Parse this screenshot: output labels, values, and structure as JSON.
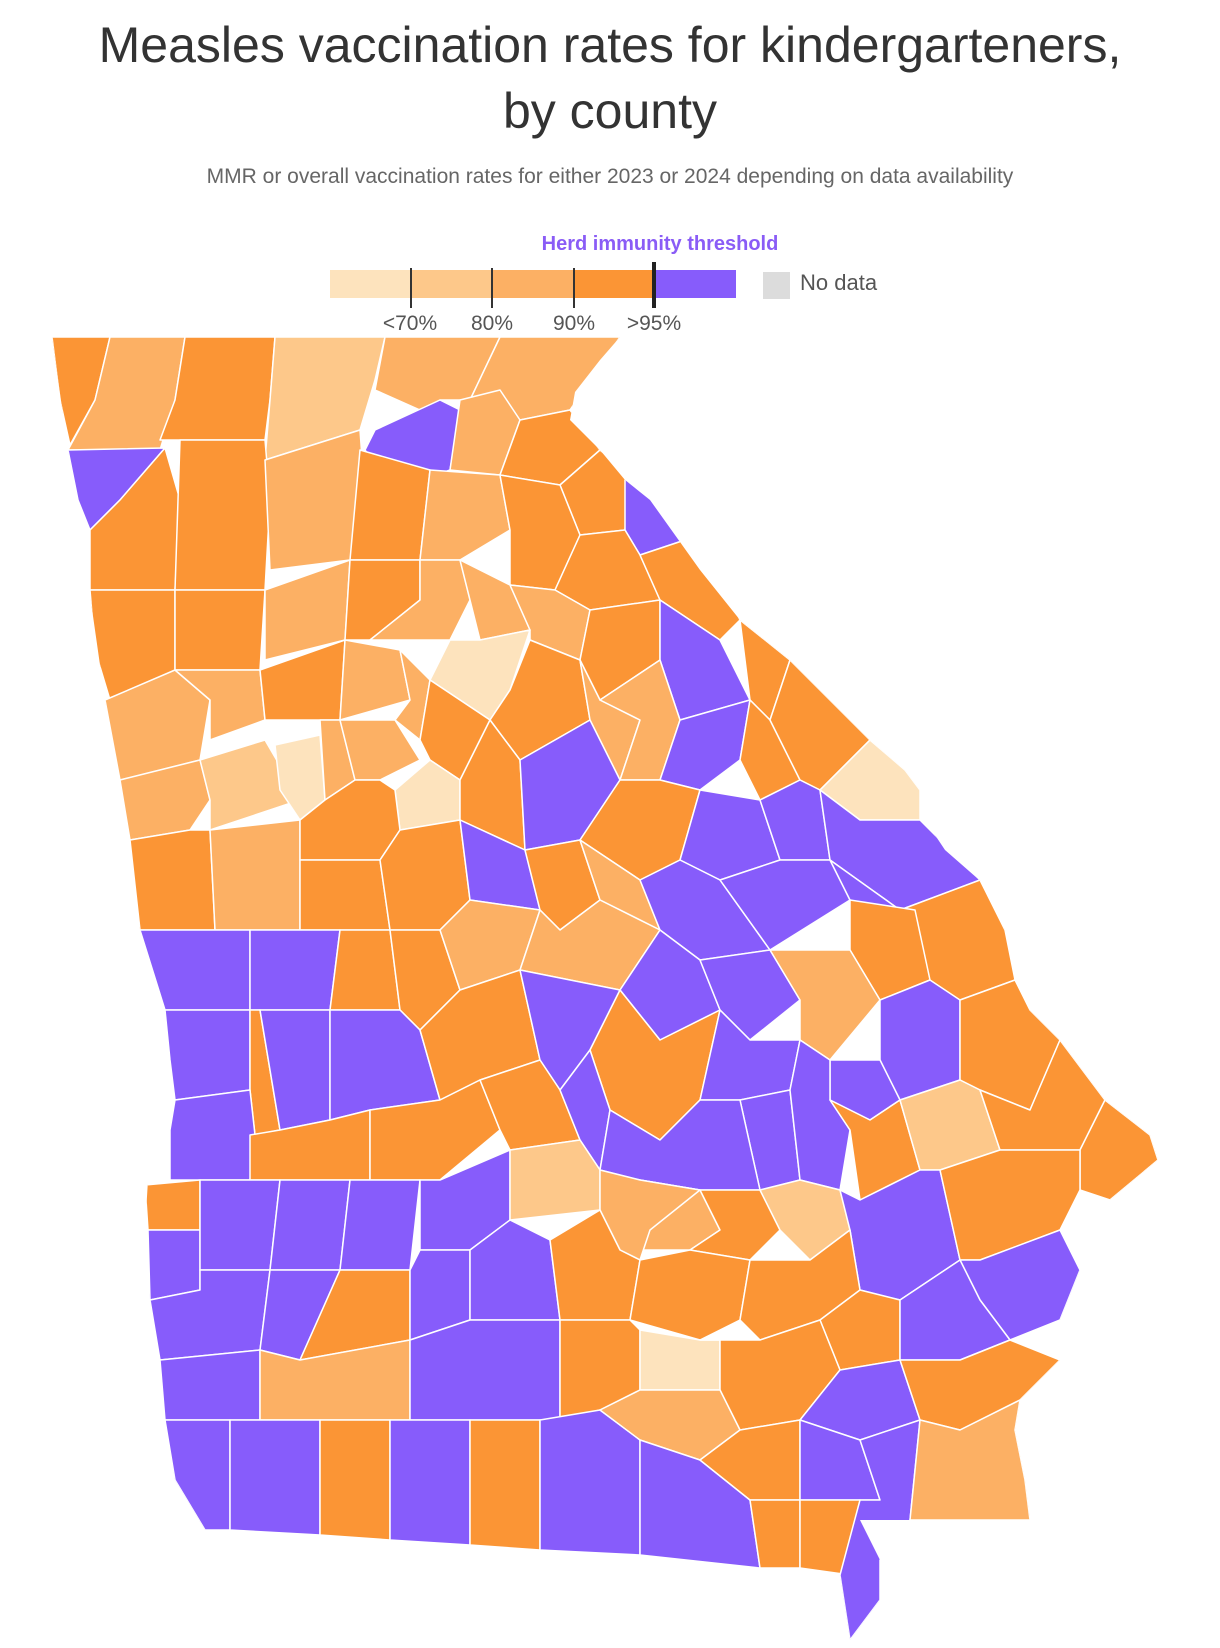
{
  "header": {
    "title_line1": "Measles vaccination rates for kindergarteners,",
    "title_line2": "by county",
    "subtitle": "MMR or overall vaccination rates for either 2023 or 2024 depending on data availability"
  },
  "legend": {
    "herd_label": "Herd immunity threshold",
    "herd_color": "#8a5cf6",
    "bins": [
      {
        "color": "#fde3bd"
      },
      {
        "color": "#fdc88a"
      },
      {
        "color": "#fcb064"
      },
      {
        "color": "#fb9535"
      },
      {
        "color": "#875cfb"
      }
    ],
    "ticks": [
      "<70%",
      "80%",
      "90%",
      ">95%"
    ],
    "nodata_label": "No data",
    "nodata_color": "#dcdcdc"
  }
}
